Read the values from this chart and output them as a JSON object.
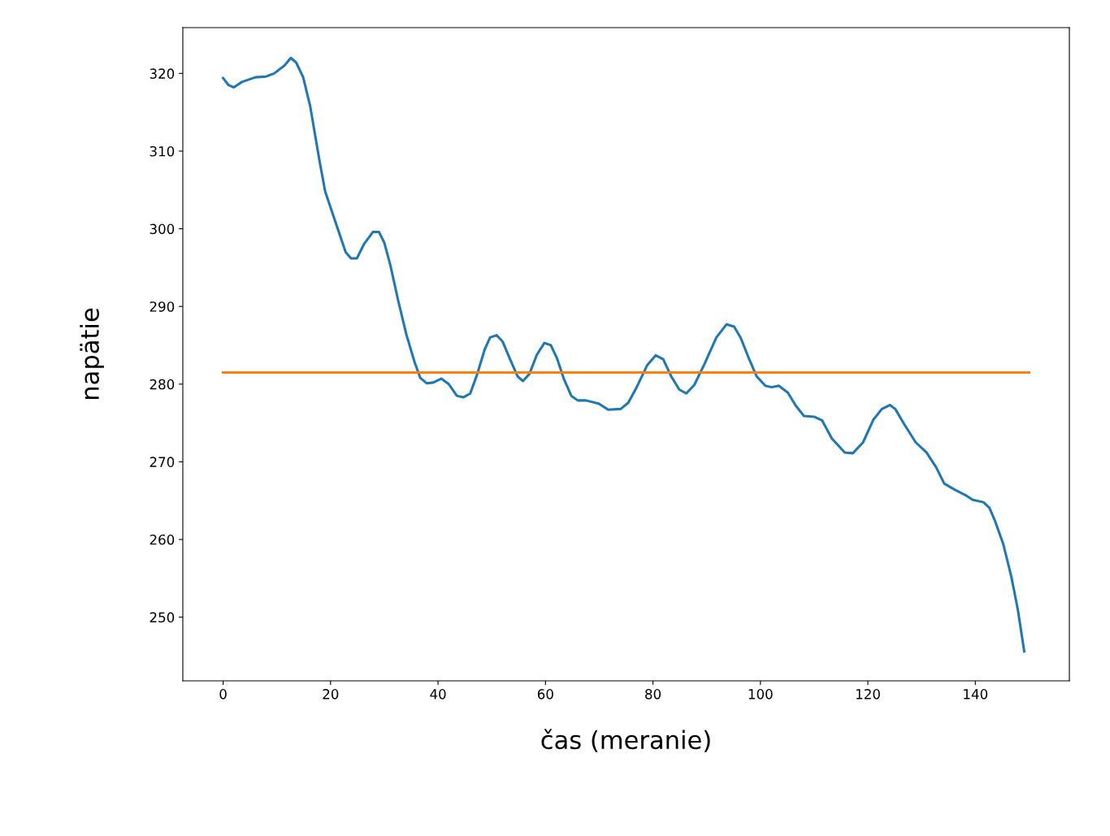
{
  "chart_data": {
    "type": "line",
    "xlabel": "čas (meranie)",
    "ylabel": "napätie",
    "xlim": [
      -7.5,
      157.5
    ],
    "ylim": [
      241.8,
      325.9
    ],
    "xticks": [
      0,
      20,
      40,
      60,
      80,
      100,
      120,
      140
    ],
    "yticks": [
      250,
      260,
      270,
      280,
      290,
      300,
      310,
      320
    ],
    "grid": false,
    "marker": "none",
    "line_style": "solid",
    "series": [
      {
        "color": "#1f77b4",
        "x": [
          0,
          1,
          2,
          3.5,
          6,
          8,
          9.5,
          11.4,
          12.6,
          13.6,
          14.9,
          16.2,
          18,
          19,
          20.5,
          22.8,
          23.8,
          24.9,
          26.2,
          27.9,
          29,
          30,
          31.1,
          32.6,
          34.1,
          35.6,
          36.7,
          37.9,
          39.1,
          40.6,
          42,
          43.5,
          44.7,
          46,
          47.3,
          48.7,
          49.7,
          50.9,
          52,
          53.4,
          54.8,
          55.8,
          57,
          58.4,
          59.8,
          61,
          62.1,
          63.4,
          64.8,
          66,
          67.5,
          69.9,
          71.7,
          74,
          75.4,
          76.9,
          78.9,
          80.5,
          81.9,
          83.4,
          84.9,
          86.2,
          87.7,
          89.6,
          91.8,
          93.7,
          95.1,
          96.3,
          97.8,
          99.3,
          100.9,
          102.1,
          103.4,
          105.1,
          106.6,
          108.1,
          110,
          111.5,
          113.3,
          115.7,
          117.2,
          119.1,
          121,
          122.6,
          124.1,
          125.1,
          126.7,
          128.9,
          130.9,
          132.7,
          134.2,
          136.2,
          138.2,
          139.5,
          141.5,
          142.6,
          143.6,
          145.2,
          146.7,
          147.9,
          149.1
        ],
        "values": [
          319.4,
          318.5,
          318.2,
          318.9,
          319.5,
          319.6,
          320,
          321,
          322,
          321.4,
          319.5,
          315.8,
          308.5,
          304.8,
          301.7,
          297,
          296.2,
          296.2,
          298,
          299.6,
          299.6,
          298.2,
          295.4,
          290.7,
          286.4,
          282.9,
          280.8,
          280.1,
          280.2,
          280.7,
          280,
          278.5,
          278.3,
          278.8,
          281.3,
          284.5,
          286,
          286.3,
          285.5,
          283.2,
          281,
          280.4,
          281.3,
          283.8,
          285.3,
          285,
          283.4,
          280.7,
          278.5,
          277.9,
          277.9,
          277.5,
          276.7,
          276.8,
          277.6,
          279.5,
          282.4,
          283.7,
          283.2,
          281,
          279.3,
          278.8,
          279.9,
          282.6,
          286,
          287.7,
          287.4,
          286,
          283.4,
          281,
          279.8,
          279.6,
          279.8,
          278.9,
          277.2,
          275.9,
          275.8,
          275.3,
          273,
          271.2,
          271.1,
          272.5,
          275.4,
          276.8,
          277.3,
          276.8,
          274.9,
          272.5,
          271.2,
          269.3,
          267.2,
          266.4,
          265.7,
          265.1,
          264.8,
          264.1,
          262.5,
          259.4,
          255.2,
          251,
          245.6
        ]
      },
      {
        "color": "#ff7f0e",
        "x": [
          0,
          150
        ],
        "values": [
          281.5,
          281.5
        ]
      }
    ]
  }
}
